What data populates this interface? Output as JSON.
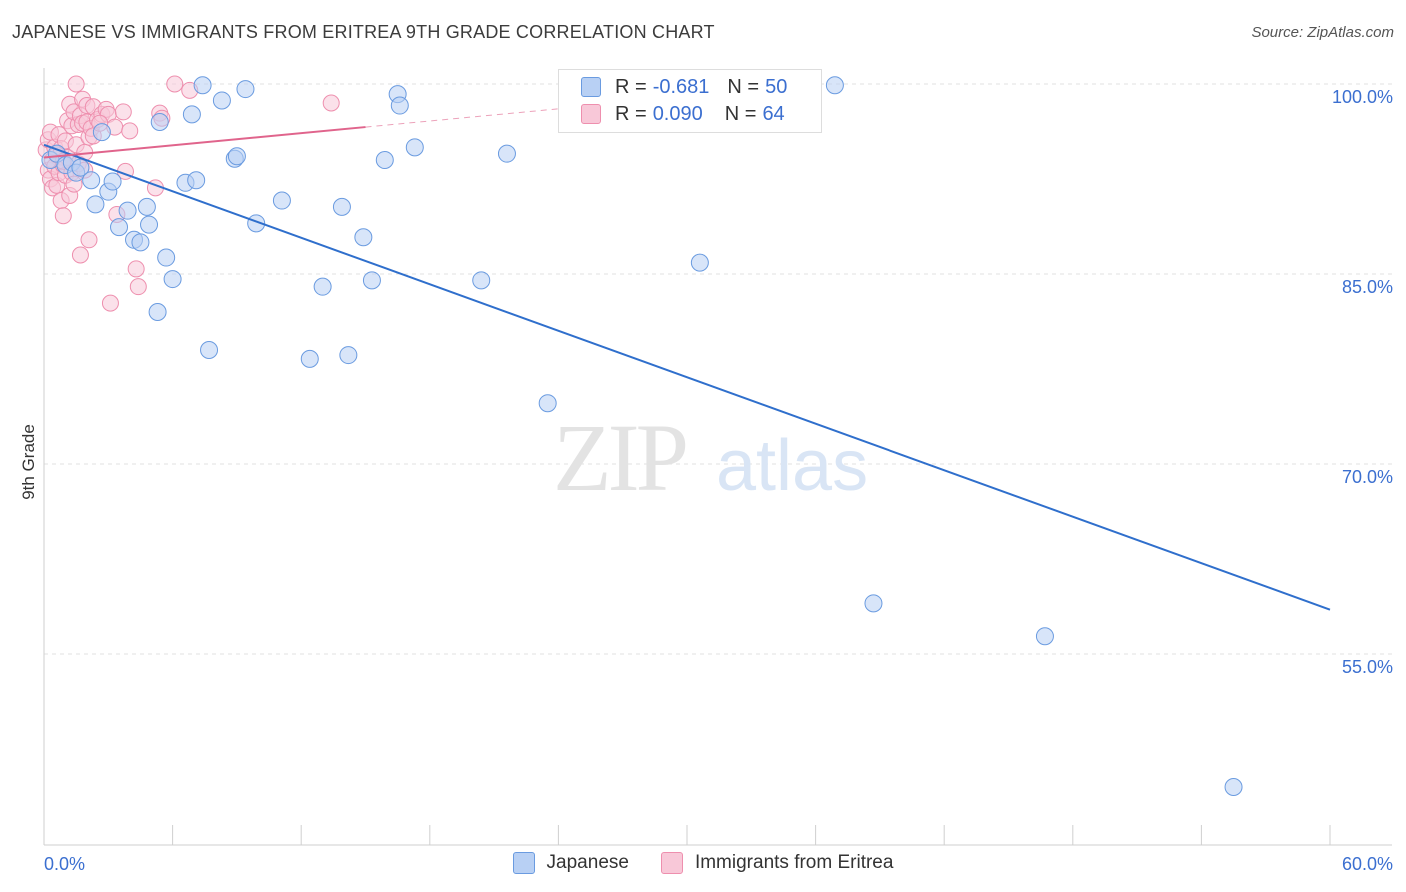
{
  "title": "JAPANESE VS IMMIGRANTS FROM ERITREA 9TH GRADE CORRELATION CHART",
  "source": "Source: ZipAtlas.com",
  "watermark": {
    "zip": "ZIP",
    "atlas": "atlas"
  },
  "legend": {
    "japanese": {
      "r_label": "R =",
      "r_value": "-0.681",
      "n_label": "N =",
      "n_value": "50"
    },
    "eritrea": {
      "r_label": "R =",
      "r_value": "0.090",
      "n_label": "N =",
      "n_value": "64"
    }
  },
  "chart_data": {
    "type": "scatter",
    "ylabel": "9th Grade",
    "xlim": [
      0,
      60
    ],
    "ylim": [
      40,
      101.5
    ],
    "x_tick_labels": [
      {
        "value": 0,
        "label": "0.0%"
      },
      {
        "value": 60,
        "label": "60.0%"
      }
    ],
    "y_tick_labels": [
      {
        "value": 100,
        "label": "100.0%"
      },
      {
        "value": 85,
        "label": "85.0%"
      },
      {
        "value": 70,
        "label": "70.0%"
      },
      {
        "value": 55,
        "label": "55.0%"
      }
    ],
    "grid": true,
    "colors": {
      "japanese": "#6a9be0",
      "japanese_fill": "#b8d0f4",
      "japanese_line": "#2f6fcc",
      "eritrea": "#ee8fae",
      "eritrea_fill": "#f8c8d8",
      "eritrea_line": "#e0648c"
    },
    "series": [
      {
        "name": "Japanese",
        "trend": {
          "x0": 0,
          "y0": 95.2,
          "x1": 60,
          "y1": 58.5
        },
        "points": [
          [
            0.3,
            94.0
          ],
          [
            0.6,
            94.5
          ],
          [
            1.0,
            93.6
          ],
          [
            1.3,
            93.8
          ],
          [
            1.5,
            93.0
          ],
          [
            1.7,
            93.4
          ],
          [
            2.2,
            92.4
          ],
          [
            2.4,
            90.5
          ],
          [
            2.7,
            96.2
          ],
          [
            3.0,
            91.5
          ],
          [
            3.2,
            92.3
          ],
          [
            3.5,
            88.7
          ],
          [
            3.9,
            90.0
          ],
          [
            4.2,
            87.7
          ],
          [
            4.5,
            87.5
          ],
          [
            4.8,
            90.3
          ],
          [
            4.9,
            88.9
          ],
          [
            5.3,
            82.0
          ],
          [
            5.4,
            97.0
          ],
          [
            5.7,
            86.3
          ],
          [
            6.0,
            84.6
          ],
          [
            6.6,
            92.2
          ],
          [
            6.9,
            97.6
          ],
          [
            7.1,
            92.4
          ],
          [
            7.4,
            99.9
          ],
          [
            7.7,
            79.0
          ],
          [
            8.3,
            98.7
          ],
          [
            8.9,
            94.1
          ],
          [
            9.0,
            94.3
          ],
          [
            9.4,
            99.6
          ],
          [
            9.9,
            89.0
          ],
          [
            11.1,
            90.8
          ],
          [
            12.4,
            78.3
          ],
          [
            13.0,
            84.0
          ],
          [
            13.9,
            90.3
          ],
          [
            14.2,
            78.6
          ],
          [
            14.9,
            87.9
          ],
          [
            15.3,
            84.5
          ],
          [
            16.5,
            99.2
          ],
          [
            16.6,
            98.3
          ],
          [
            17.3,
            95.0
          ],
          [
            20.4,
            84.5
          ],
          [
            21.6,
            94.5
          ],
          [
            23.5,
            74.8
          ],
          [
            30.6,
            85.9
          ],
          [
            36.9,
            99.9
          ],
          [
            38.7,
            59.0
          ],
          [
            46.7,
            56.4
          ],
          [
            55.5,
            44.5
          ],
          [
            15.9,
            94.0
          ]
        ]
      },
      {
        "name": "Immigrants from Eritrea",
        "trend": {
          "x0": 0,
          "y0": 94.2,
          "x1": 15,
          "y1": 96.6
        },
        "trend_dashed": {
          "x0": 15,
          "y0": 96.6,
          "x1": 35,
          "y1": 99.8
        },
        "points": [
          [
            0.1,
            94.8
          ],
          [
            0.2,
            93.2
          ],
          [
            0.2,
            95.6
          ],
          [
            0.3,
            92.5
          ],
          [
            0.3,
            96.2
          ],
          [
            0.4,
            94.0
          ],
          [
            0.4,
            91.8
          ],
          [
            0.5,
            93.5
          ],
          [
            0.5,
            95.0
          ],
          [
            0.6,
            92.0
          ],
          [
            0.6,
            94.4
          ],
          [
            0.7,
            93.0
          ],
          [
            0.7,
            96.0
          ],
          [
            0.8,
            90.8
          ],
          [
            0.8,
            94.9
          ],
          [
            0.9,
            93.6
          ],
          [
            0.9,
            89.6
          ],
          [
            1.0,
            95.5
          ],
          [
            1.0,
            92.8
          ],
          [
            1.1,
            97.1
          ],
          [
            1.1,
            94.2
          ],
          [
            1.2,
            98.4
          ],
          [
            1.2,
            91.2
          ],
          [
            1.3,
            96.7
          ],
          [
            1.3,
            93.0
          ],
          [
            1.4,
            97.8
          ],
          [
            1.4,
            92.1
          ],
          [
            1.5,
            95.2
          ],
          [
            1.5,
            100.0
          ],
          [
            1.6,
            96.8
          ],
          [
            1.6,
            93.7
          ],
          [
            1.7,
            97.5
          ],
          [
            1.7,
            86.5
          ],
          [
            1.8,
            98.8
          ],
          [
            1.8,
            96.9
          ],
          [
            1.9,
            93.2
          ],
          [
            2.0,
            97.0
          ],
          [
            2.0,
            98.3
          ],
          [
            2.1,
            87.7
          ],
          [
            2.1,
            95.8
          ],
          [
            2.2,
            96.5
          ],
          [
            2.3,
            98.2
          ],
          [
            2.5,
            97.2
          ],
          [
            2.7,
            97.6
          ],
          [
            2.9,
            98.0
          ],
          [
            3.0,
            97.6
          ],
          [
            3.1,
            82.7
          ],
          [
            3.3,
            96.6
          ],
          [
            3.4,
            89.7
          ],
          [
            3.7,
            97.8
          ],
          [
            3.8,
            93.1
          ],
          [
            4.0,
            96.3
          ],
          [
            4.3,
            85.4
          ],
          [
            4.4,
            84.0
          ],
          [
            5.2,
            91.8
          ],
          [
            5.4,
            97.7
          ],
          [
            5.5,
            97.3
          ],
          [
            6.1,
            100.0
          ],
          [
            6.8,
            99.5
          ],
          [
            13.4,
            98.5
          ],
          [
            2.3,
            95.9
          ],
          [
            2.6,
            96.9
          ],
          [
            1.9,
            94.6
          ],
          [
            0.9,
            93.9
          ]
        ]
      }
    ]
  },
  "bottom_legend": [
    "Japanese",
    "Immigrants from Eritrea"
  ]
}
